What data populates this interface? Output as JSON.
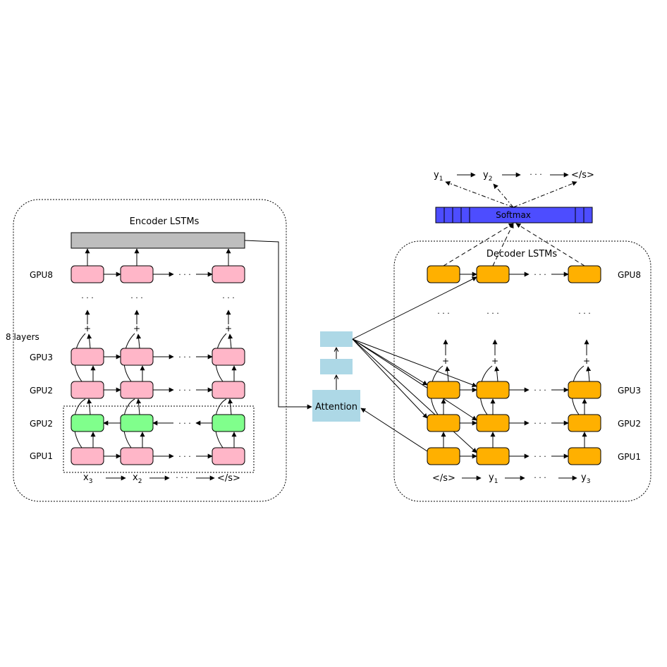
{
  "encoder": {
    "title": "Encoder LSTMs",
    "layers_note": "8 layers",
    "rows": [
      {
        "label": "GPU8",
        "kind": "pink"
      },
      {
        "label": "GPU3",
        "kind": "pink"
      },
      {
        "label": "GPU2",
        "kind": "pink"
      },
      {
        "label": "GPU2",
        "kind": "green"
      },
      {
        "label": "GPU1",
        "kind": "pink"
      }
    ],
    "inputs": [
      "x",
      "x",
      "</s>"
    ],
    "input_subscripts": [
      "3",
      "2",
      ""
    ],
    "row_ellipsis": "· · ·",
    "layer_ellipsis": "· · ·",
    "plus": "+"
  },
  "decoder": {
    "title": "Decoder LSTMs",
    "rows": [
      {
        "label": "GPU8"
      },
      {
        "label": "GPU3"
      },
      {
        "label": "GPU2"
      },
      {
        "label": "GPU1"
      }
    ],
    "inputs": [
      "</s>",
      "y",
      "y"
    ],
    "input_subscripts": [
      "",
      "1",
      "3"
    ],
    "row_ellipsis": "· · ·",
    "layer_ellipsis": "· · ·",
    "plus": "+"
  },
  "attention": {
    "label": "Attention"
  },
  "softmax": {
    "label": "Softmax"
  },
  "outputs": {
    "tokens": [
      "y",
      "y",
      "</s>"
    ],
    "subscripts": [
      "1",
      "2",
      ""
    ],
    "ellipsis": "· · ·"
  },
  "colors": {
    "encoder_cell": "#ffb6c8",
    "encoder_reverse_cell": "#80ff8c",
    "decoder_cell": "#ffb000",
    "attention": "#add8e6",
    "softmax": "#4d4dff",
    "encoder_top": "#bebebe"
  }
}
